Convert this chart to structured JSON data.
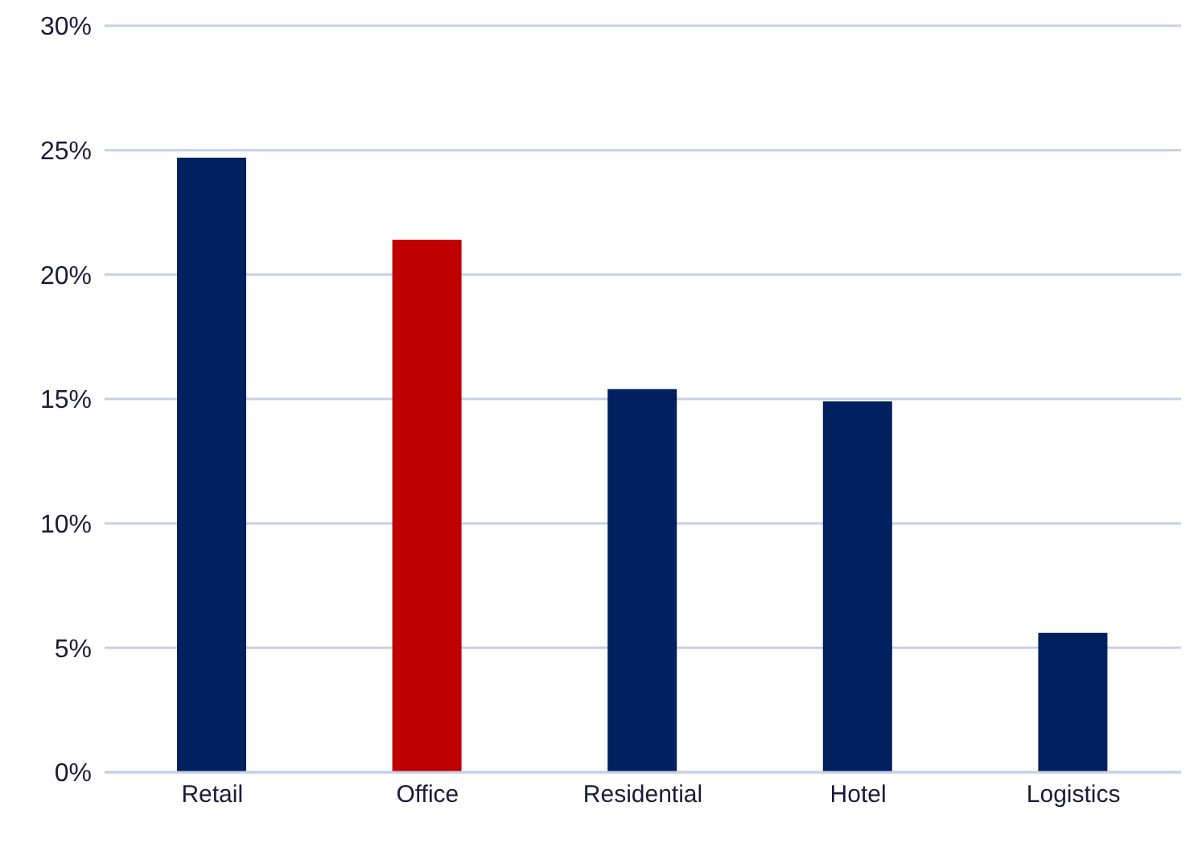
{
  "chart_data": {
    "type": "bar",
    "categories": [
      "Retail",
      "Office",
      "Residential",
      "Hotel",
      "Logistics"
    ],
    "values": [
      24.7,
      21.4,
      15.4,
      14.9,
      5.6
    ],
    "colors": [
      "#002060",
      "#c00000",
      "#002060",
      "#002060",
      "#002060"
    ],
    "ylim": [
      0,
      30
    ],
    "yticks": [
      {
        "value": 0,
        "label": "0%"
      },
      {
        "value": 5,
        "label": "5%"
      },
      {
        "value": 10,
        "label": "10%"
      },
      {
        "value": 15,
        "label": "15%"
      },
      {
        "value": 20,
        "label": "20%"
      },
      {
        "value": 25,
        "label": "25%"
      },
      {
        "value": 30,
        "label": "30%"
      }
    ],
    "grid": "y"
  }
}
